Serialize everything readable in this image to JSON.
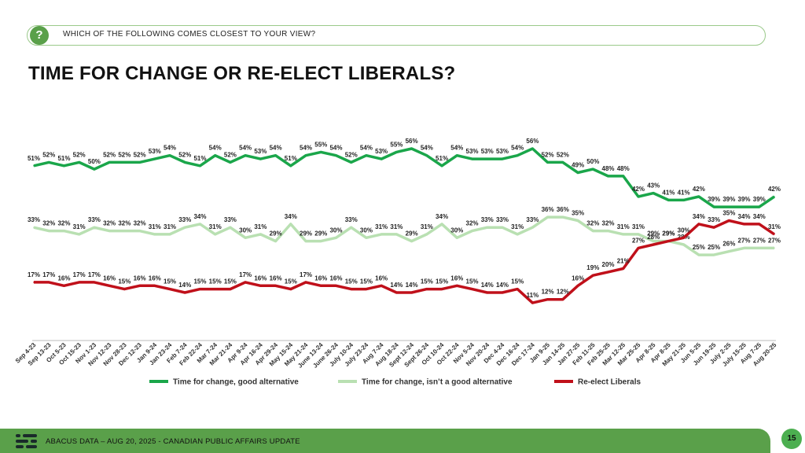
{
  "header": {
    "question": "WHICH OF THE FOLLOWING COMES CLOSEST TO YOUR VIEW?",
    "question_icon": "?"
  },
  "title": "TIME FOR CHANGE OR RE-ELECT LIBERALS?",
  "footer": {
    "text": "ABACUS DATA – AUG 20, 2025 - CANADIAN PUBLIC AFFAIRS UPDATE",
    "page": "15"
  },
  "colors": {
    "green": "#1aa64a",
    "light": "#b9e0b2",
    "red": "#c0101a",
    "footer": "#5aa04a"
  },
  "chart_data": {
    "type": "line",
    "categories": [
      "Sep 4-23",
      "Sep 13-23",
      "Oct 5-23",
      "Oct 15-23",
      "Nov 1-23",
      "Nov 12-23",
      "Nov 28-23",
      "Dec 12-23",
      "Jan 9-24",
      "Jan 23-24",
      "Feb 7-24",
      "Feb 22-24",
      "Mar 7-24",
      "Mar 21-24",
      "Apr 9-24",
      "Apr 16-24",
      "Apr 29-24",
      "May 15-24",
      "May 21-24",
      "June 13-24",
      "June 26-24",
      "July 10-24",
      "July 23-24",
      "Aug 7-24",
      "Aug 18-24",
      "Sept 12-24",
      "Sept 26-24",
      "Oct 10-24",
      "Oct 22-24",
      "Nov 5-24",
      "Nov 20-24",
      "Dec 4-24",
      "Dec 16-24",
      "Dec 17-24",
      "Jan 9-25",
      "Jan 14-25",
      "Jan 27-25",
      "Feb 11-25",
      "Feb 25-25",
      "Mar 12-25",
      "Mar 25-25",
      "Apr 8-25",
      "Apr 8-25",
      "May 21-25",
      "Jun 5-25",
      "Jun 19-25",
      "July 2-25",
      "July 15-25",
      "Aug 7-25",
      "Aug 20-25"
    ],
    "series": [
      {
        "name": "Time for change, good alternative",
        "color": "#1aa64a",
        "values": [
          51,
          52,
          51,
          52,
          50,
          52,
          52,
          52,
          53,
          54,
          52,
          51,
          54,
          52,
          54,
          53,
          54,
          51,
          54,
          55,
          54,
          52,
          54,
          53,
          55,
          56,
          54,
          51,
          54,
          53,
          53,
          53,
          54,
          56,
          52,
          52,
          49,
          50,
          48,
          48,
          42,
          43,
          41,
          41,
          42,
          39,
          39,
          39,
          39,
          42
        ]
      },
      {
        "name": "Time for change, isn’t a good alternative",
        "color": "#b9e0b2",
        "values": [
          33,
          32,
          32,
          31,
          33,
          32,
          32,
          32,
          31,
          31,
          33,
          34,
          31,
          33,
          30,
          31,
          29,
          34,
          29,
          29,
          30,
          33,
          30,
          31,
          31,
          29,
          31,
          34,
          30,
          32,
          33,
          33,
          31,
          33,
          36,
          36,
          35,
          32,
          32,
          31,
          31,
          29,
          29,
          28,
          25,
          25,
          26,
          27,
          27,
          27
        ]
      },
      {
        "name": "Re-elect Liberals",
        "color": "#c0101a",
        "values": [
          17,
          17,
          16,
          17,
          17,
          16,
          15,
          16,
          16,
          15,
          14,
          15,
          15,
          15,
          17,
          16,
          16,
          15,
          17,
          16,
          16,
          15,
          15,
          16,
          14,
          14,
          15,
          15,
          16,
          15,
          14,
          14,
          15,
          11,
          12,
          12,
          16,
          19,
          20,
          21,
          27,
          28,
          29,
          30,
          34,
          33,
          35,
          34,
          34,
          31
        ]
      }
    ],
    "ylim": [
      0,
      70
    ],
    "legend_position": "bottom",
    "grid": false
  }
}
